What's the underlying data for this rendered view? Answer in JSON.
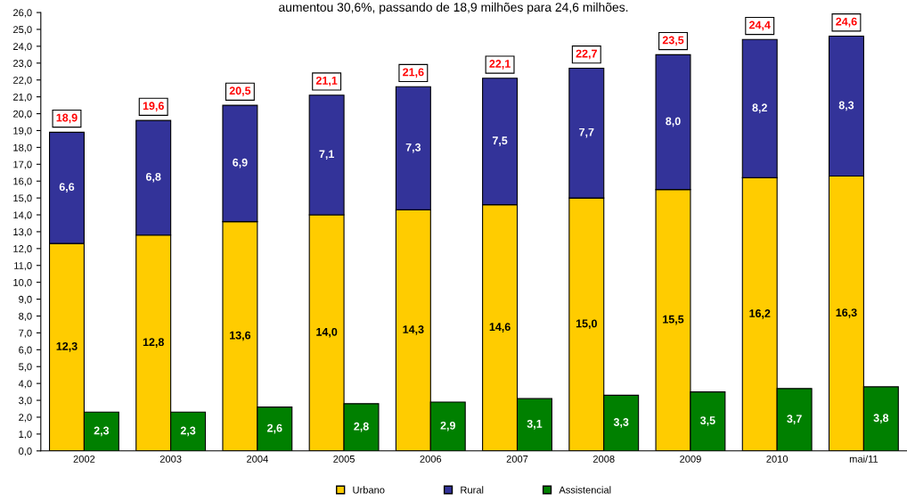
{
  "chart_data": [
    {
      "type": "bar",
      "title": "aumentou 30,6%, passando de 18,9 milhões para 24,6 milhões.",
      "categories": [
        null,
        null,
        null,
        null,
        null,
        null,
        null,
        null,
        null,
        null
      ],
      "stacked": true,
      "series": [
        {
          "name": "Urbano",
          "color": "#ffcc00",
          "values": [
            12.3,
            12.8,
            13.6,
            14.0,
            14.3,
            14.6,
            15.0,
            15.5,
            16.2,
            16.3
          ],
          "value_labels": [
            "12,3",
            "12,8",
            "13,6",
            "14,0",
            "14,3",
            "14,6",
            "15,0",
            "15,5",
            "16,2",
            "16,3"
          ]
        },
        {
          "name": "Rural",
          "color": "#333399",
          "values": [
            6.6,
            6.8,
            6.9,
            7.1,
            7.3,
            7.5,
            7.7,
            8.0,
            8.2,
            8.3
          ],
          "value_labels": [
            "6,6",
            "6,8",
            "6,9",
            "7,1",
            "7,3",
            "7,5",
            "7,7",
            "8,0",
            "8,2",
            "8,3"
          ]
        }
      ],
      "totals": [
        "18,9",
        "19,6",
        "20,5",
        "21,1",
        "21,6",
        "22,1",
        "22,7",
        "23,5",
        "24,4",
        "24,6"
      ],
      "ylim": [
        0,
        26
      ],
      "yticks": [
        {
          "value": 0,
          "label": "0,0"
        },
        {
          "value": 1,
          "label": "1,0"
        },
        {
          "value": 2,
          "label": "2,0"
        },
        {
          "value": 3,
          "label": "3,0"
        },
        {
          "value": 4,
          "label": "4,0"
        },
        {
          "value": 5,
          "label": "5,0"
        },
        {
          "value": 6,
          "label": "6,0"
        },
        {
          "value": 7,
          "label": "7,0"
        },
        {
          "value": 8,
          "label": "8,0"
        },
        {
          "value": 9,
          "label": "9,0"
        },
        {
          "value": 10,
          "label": "10,0"
        },
        {
          "value": 11,
          "label": "11,0"
        },
        {
          "value": 12,
          "label": "12,0"
        },
        {
          "value": 13,
          "label": "13,0"
        },
        {
          "value": 14,
          "label": "14,0"
        },
        {
          "value": 15,
          "label": "15,0"
        },
        {
          "value": 16,
          "label": "16,0"
        },
        {
          "value": 17,
          "label": "17,0"
        },
        {
          "value": 18,
          "label": "18,0"
        },
        {
          "value": 19,
          "label": "19,0"
        },
        {
          "value": 20,
          "label": "20,0"
        },
        {
          "value": 21,
          "label": "21,0"
        },
        {
          "value": 22,
          "label": "22,0"
        },
        {
          "value": 23,
          "label": "23,0"
        },
        {
          "value": 24,
          "label": "24,0"
        },
        {
          "value": 25,
          "label": "25,0"
        },
        {
          "value": 26,
          "label": "26,0"
        }
      ],
      "tick_labels": "y",
      "grid": false,
      "legend": "bottom"
    },
    {
      "type": "bar",
      "categories": [
        "2002",
        "2003",
        "2004",
        "2005",
        "2006",
        "2007",
        "2008",
        "2009",
        "2010",
        "mai/11"
      ],
      "series": [
        {
          "name": "Assistencial",
          "color": "#008000",
          "values": [
            2.3,
            2.3,
            2.6,
            2.8,
            2.9,
            3.1,
            3.3,
            3.5,
            3.7,
            3.8
          ],
          "value_labels": [
            "2,3",
            "2,3",
            "2,6",
            "2,8",
            "2,9",
            "3,1",
            "3,3",
            "3,5",
            "3,7",
            "3,8"
          ]
        }
      ],
      "ylim": [
        0,
        26
      ],
      "tick_labels": "x",
      "legend": "bottom"
    }
  ]
}
